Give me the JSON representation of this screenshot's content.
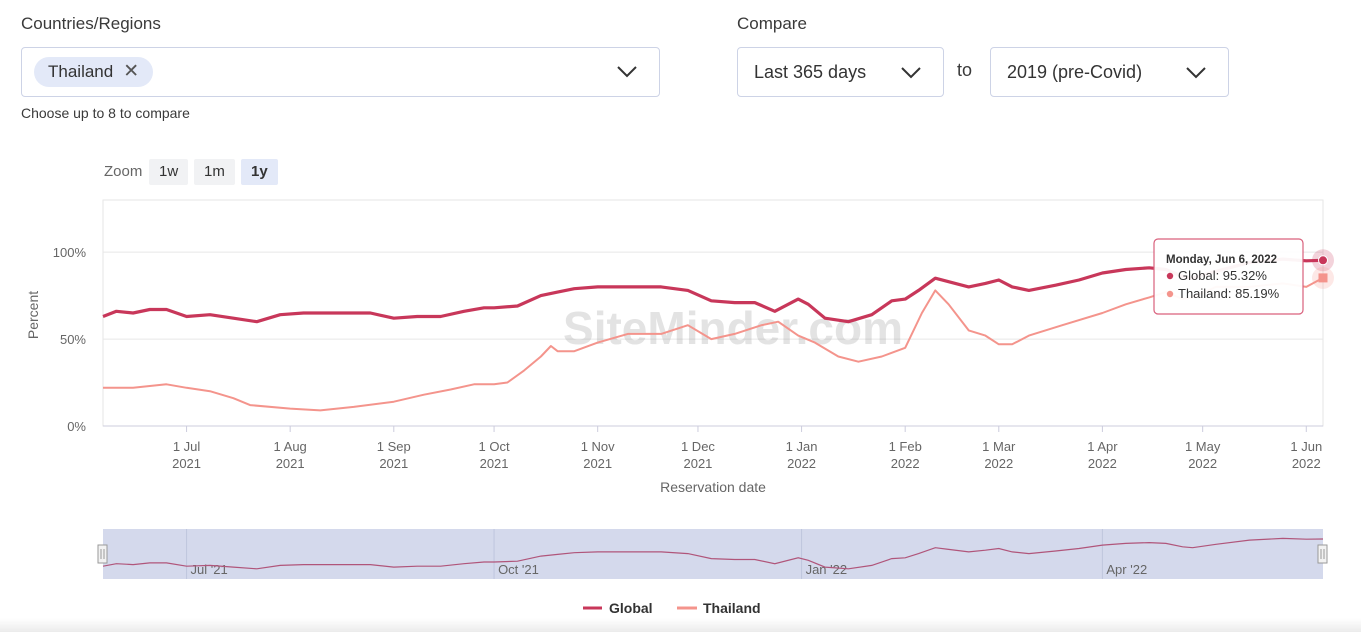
{
  "filters": {
    "countries_label": "Countries/Regions",
    "selected_country": "Thailand",
    "remove_icon": "✕",
    "helper": "Choose up to 8 to compare",
    "compare_label": "Compare",
    "period_value": "Last 365 days",
    "to_label": "to",
    "baseline_value": "2019 (pre-Covid)"
  },
  "zoom": {
    "label": "Zoom",
    "options": [
      "1w",
      "1m",
      "1y"
    ],
    "active": "1y"
  },
  "watermark": "SiteMinder.com",
  "tooltip": {
    "date": "Monday, Jun 6, 2022",
    "rows": [
      {
        "series": "Global",
        "label": "Global: 95.32%"
      },
      {
        "series": "Thailand",
        "label": "Thailand: 85.19%"
      }
    ]
  },
  "legend": [
    "Global",
    "Thailand"
  ],
  "navigator_labels": [
    "Jul '21",
    "Oct '21",
    "Jan '22",
    "Apr '22"
  ],
  "colors": {
    "global": "#c8375a",
    "thailand": "#f4948c",
    "navigator_bg": "#d4d9ec",
    "accent_border": "#d9607c"
  },
  "chart_data": {
    "type": "line",
    "ylabel": "Percent",
    "xlabel": "Reservation date",
    "ylim": [
      0,
      130
    ],
    "yticks": [
      {
        "v": 0,
        "label": "0%"
      },
      {
        "v": 50,
        "label": "50%"
      },
      {
        "v": 100,
        "label": "100%"
      }
    ],
    "xlim": [
      "2021-06-06",
      "2022-06-06"
    ],
    "xticks": [
      {
        "date": "2021-07-01",
        "l1": "1 Jul",
        "l2": "2021"
      },
      {
        "date": "2021-08-01",
        "l1": "1 Aug",
        "l2": "2021"
      },
      {
        "date": "2021-09-01",
        "l1": "1 Sep",
        "l2": "2021"
      },
      {
        "date": "2021-10-01",
        "l1": "1 Oct",
        "l2": "2021"
      },
      {
        "date": "2021-11-01",
        "l1": "1 Nov",
        "l2": "2021"
      },
      {
        "date": "2021-12-01",
        "l1": "1 Dec",
        "l2": "2021"
      },
      {
        "date": "2022-01-01",
        "l1": "1 Jan",
        "l2": "2022"
      },
      {
        "date": "2022-02-01",
        "l1": "1 Feb",
        "l2": "2022"
      },
      {
        "date": "2022-03-01",
        "l1": "1 Mar",
        "l2": "2022"
      },
      {
        "date": "2022-04-01",
        "l1": "1 Apr",
        "l2": "2022"
      },
      {
        "date": "2022-05-01",
        "l1": "1 May",
        "l2": "2022"
      },
      {
        "date": "2022-06-01",
        "l1": "1 Jun",
        "l2": "2022"
      }
    ],
    "grid": true,
    "series": [
      {
        "name": "Global",
        "points": [
          [
            "2021-06-06",
            63
          ],
          [
            "2021-06-10",
            66
          ],
          [
            "2021-06-15",
            65
          ],
          [
            "2021-06-20",
            67
          ],
          [
            "2021-06-25",
            67
          ],
          [
            "2021-07-01",
            63
          ],
          [
            "2021-07-08",
            64
          ],
          [
            "2021-07-15",
            62
          ],
          [
            "2021-07-22",
            60
          ],
          [
            "2021-07-29",
            64
          ],
          [
            "2021-08-05",
            65
          ],
          [
            "2021-08-15",
            65
          ],
          [
            "2021-08-25",
            65
          ],
          [
            "2021-09-01",
            62
          ],
          [
            "2021-09-08",
            63
          ],
          [
            "2021-09-15",
            63
          ],
          [
            "2021-09-22",
            66
          ],
          [
            "2021-09-28",
            68
          ],
          [
            "2021-10-01",
            68
          ],
          [
            "2021-10-08",
            69
          ],
          [
            "2021-10-15",
            75
          ],
          [
            "2021-10-20",
            77
          ],
          [
            "2021-10-25",
            79
          ],
          [
            "2021-11-01",
            80
          ],
          [
            "2021-11-10",
            80
          ],
          [
            "2021-11-20",
            80
          ],
          [
            "2021-11-28",
            78
          ],
          [
            "2021-12-05",
            72
          ],
          [
            "2021-12-12",
            71
          ],
          [
            "2021-12-18",
            71
          ],
          [
            "2021-12-24",
            66
          ],
          [
            "2021-12-31",
            73
          ],
          [
            "2022-01-03",
            70
          ],
          [
            "2022-01-08",
            62
          ],
          [
            "2022-01-15",
            60
          ],
          [
            "2022-01-22",
            64
          ],
          [
            "2022-01-28",
            72
          ],
          [
            "2022-02-01",
            73
          ],
          [
            "2022-02-05",
            78
          ],
          [
            "2022-02-10",
            85
          ],
          [
            "2022-02-14",
            83
          ],
          [
            "2022-02-20",
            80
          ],
          [
            "2022-02-25",
            82
          ],
          [
            "2022-03-01",
            84
          ],
          [
            "2022-03-05",
            80
          ],
          [
            "2022-03-10",
            78
          ],
          [
            "2022-03-18",
            81
          ],
          [
            "2022-03-25",
            84
          ],
          [
            "2022-04-01",
            88
          ],
          [
            "2022-04-08",
            90
          ],
          [
            "2022-04-15",
            91
          ],
          [
            "2022-04-20",
            90
          ],
          [
            "2022-04-25",
            86
          ],
          [
            "2022-04-28",
            85
          ],
          [
            "2022-05-05",
            89
          ],
          [
            "2022-05-15",
            94
          ],
          [
            "2022-05-25",
            96
          ],
          [
            "2022-06-01",
            95
          ],
          [
            "2022-06-06",
            95.32
          ]
        ]
      },
      {
        "name": "Thailand",
        "points": [
          [
            "2021-06-06",
            22
          ],
          [
            "2021-06-15",
            22
          ],
          [
            "2021-06-25",
            24
          ],
          [
            "2021-07-01",
            22
          ],
          [
            "2021-07-08",
            20
          ],
          [
            "2021-07-15",
            16
          ],
          [
            "2021-07-20",
            12
          ],
          [
            "2021-08-01",
            10
          ],
          [
            "2021-08-10",
            9
          ],
          [
            "2021-08-20",
            11
          ],
          [
            "2021-09-01",
            14
          ],
          [
            "2021-09-10",
            18
          ],
          [
            "2021-09-18",
            21
          ],
          [
            "2021-09-25",
            24
          ],
          [
            "2021-10-01",
            24
          ],
          [
            "2021-10-05",
            25
          ],
          [
            "2021-10-10",
            32
          ],
          [
            "2021-10-15",
            40
          ],
          [
            "2021-10-18",
            46
          ],
          [
            "2021-10-20",
            43
          ],
          [
            "2021-10-25",
            43
          ],
          [
            "2021-11-01",
            48
          ],
          [
            "2021-11-10",
            53
          ],
          [
            "2021-11-20",
            53
          ],
          [
            "2021-11-28",
            58
          ],
          [
            "2021-12-05",
            50
          ],
          [
            "2021-12-12",
            53
          ],
          [
            "2021-12-20",
            58
          ],
          [
            "2021-12-25",
            60
          ],
          [
            "2021-12-31",
            52
          ],
          [
            "2022-01-05",
            48
          ],
          [
            "2022-01-12",
            40
          ],
          [
            "2022-01-18",
            37
          ],
          [
            "2022-01-25",
            40
          ],
          [
            "2022-02-01",
            45
          ],
          [
            "2022-02-06",
            65
          ],
          [
            "2022-02-10",
            78
          ],
          [
            "2022-02-14",
            70
          ],
          [
            "2022-02-20",
            55
          ],
          [
            "2022-02-25",
            52
          ],
          [
            "2022-03-01",
            47
          ],
          [
            "2022-03-05",
            47
          ],
          [
            "2022-03-10",
            52
          ],
          [
            "2022-03-20",
            58
          ],
          [
            "2022-04-01",
            65
          ],
          [
            "2022-04-08",
            70
          ],
          [
            "2022-04-15",
            74
          ],
          [
            "2022-04-20",
            77
          ],
          [
            "2022-04-25",
            73
          ],
          [
            "2022-04-28",
            74
          ],
          [
            "2022-05-05",
            80
          ],
          [
            "2022-05-15",
            80
          ],
          [
            "2022-05-25",
            82
          ],
          [
            "2022-06-01",
            80
          ],
          [
            "2022-06-06",
            85.19
          ]
        ]
      }
    ]
  }
}
